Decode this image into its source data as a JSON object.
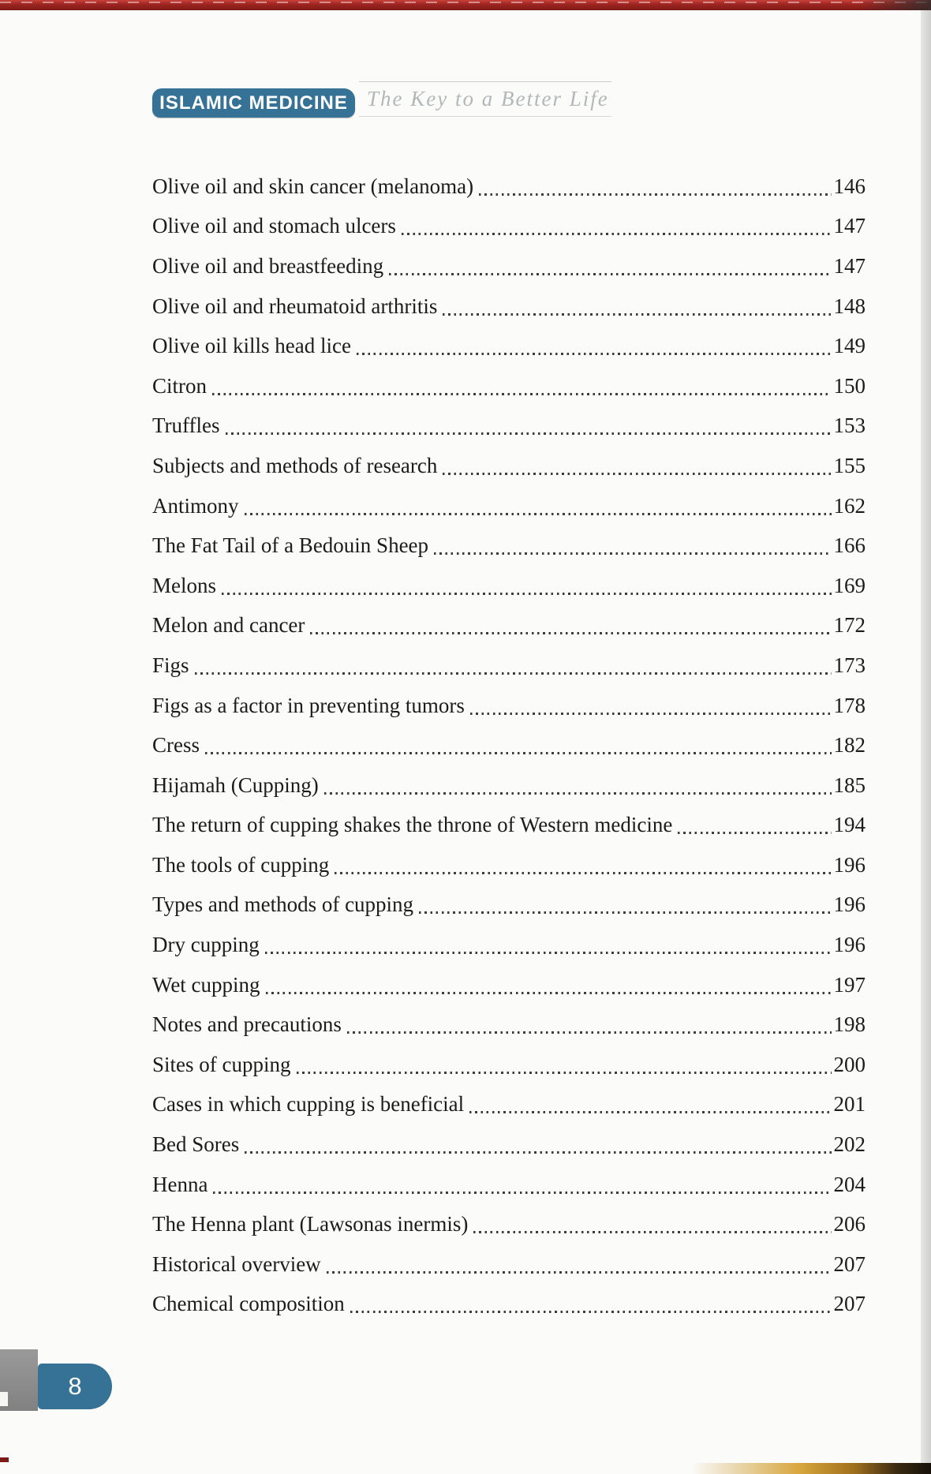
{
  "header": {
    "series_badge": "ISLAMIC MEDICINE",
    "tagline": "The Key to a Better Life"
  },
  "footer": {
    "page_number": "8"
  },
  "toc": {
    "entries": [
      {
        "title": "Olive oil and skin cancer (melanoma)",
        "page": "146"
      },
      {
        "title": "Olive oil and stomach ulcers",
        "page": "147"
      },
      {
        "title": "Olive oil and breastfeeding",
        "page": "147"
      },
      {
        "title": "Olive oil and rheumatoid arthritis",
        "page": "148"
      },
      {
        "title": "Olive oil kills head lice",
        "page": "149"
      },
      {
        "title": "Citron",
        "page": "150"
      },
      {
        "title": "Truffles",
        "page": "153"
      },
      {
        "title": "Subjects and methods of research",
        "page": "155"
      },
      {
        "title": "Antimony",
        "page": "162"
      },
      {
        "title": "The Fat Tail of a Bedouin Sheep",
        "page": "166"
      },
      {
        "title": "Melons",
        "page": "169"
      },
      {
        "title": "Melon and cancer",
        "page": "172"
      },
      {
        "title": "Figs",
        "page": "173"
      },
      {
        "title": "Figs as a factor in preventing tumors",
        "page": "178"
      },
      {
        "title": "Cress",
        "page": "182"
      },
      {
        "title": "Hijamah (Cupping)",
        "page": "185"
      },
      {
        "title": "The return of cupping shakes the throne of Western medicine",
        "page": "194"
      },
      {
        "title": "The tools of cupping",
        "page": "196"
      },
      {
        "title": "Types and methods of cupping",
        "page": "196"
      },
      {
        "title": "Dry cupping",
        "page": "196"
      },
      {
        "title": "Wet cupping",
        "page": "197"
      },
      {
        "title": "Notes and precautions",
        "page": "198"
      },
      {
        "title": "Sites of cupping",
        "page": "200"
      },
      {
        "title": "Cases in which cupping is beneficial",
        "page": "201"
      },
      {
        "title": "Bed Sores",
        "page": "202"
      },
      {
        "title": "Henna",
        "page": "204"
      },
      {
        "title": "The Henna plant (Lawsonas inermis)",
        "page": "206"
      },
      {
        "title": "Historical overview",
        "page": "207"
      },
      {
        "title": "Chemical composition",
        "page": "207"
      }
    ]
  },
  "colors": {
    "teal": "#357295",
    "red_bar_top": "#c8423a",
    "red_bar_bottom": "#7c1a17",
    "text": "#1c1c1c",
    "tagline_gray": "#b3b7ba"
  }
}
